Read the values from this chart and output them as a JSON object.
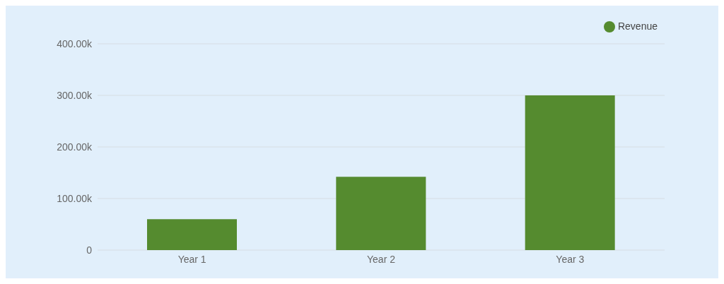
{
  "chart_data": {
    "type": "bar",
    "categories": [
      "Year 1",
      "Year 2",
      "Year 3"
    ],
    "series": [
      {
        "name": "Revenue",
        "color": "#558b2f",
        "values": [
          60000,
          142000,
          300000
        ]
      }
    ],
    "ylim": [
      0,
      400000
    ],
    "yticks": [
      {
        "value": 0,
        "label": "0"
      },
      {
        "value": 100000,
        "label": "100.00k"
      },
      {
        "value": 200000,
        "label": "200.00k"
      },
      {
        "value": 300000,
        "label": "300.00k"
      },
      {
        "value": 400000,
        "label": "400.00k"
      }
    ],
    "grid": "y",
    "legend": "top right",
    "marker": "circle"
  }
}
